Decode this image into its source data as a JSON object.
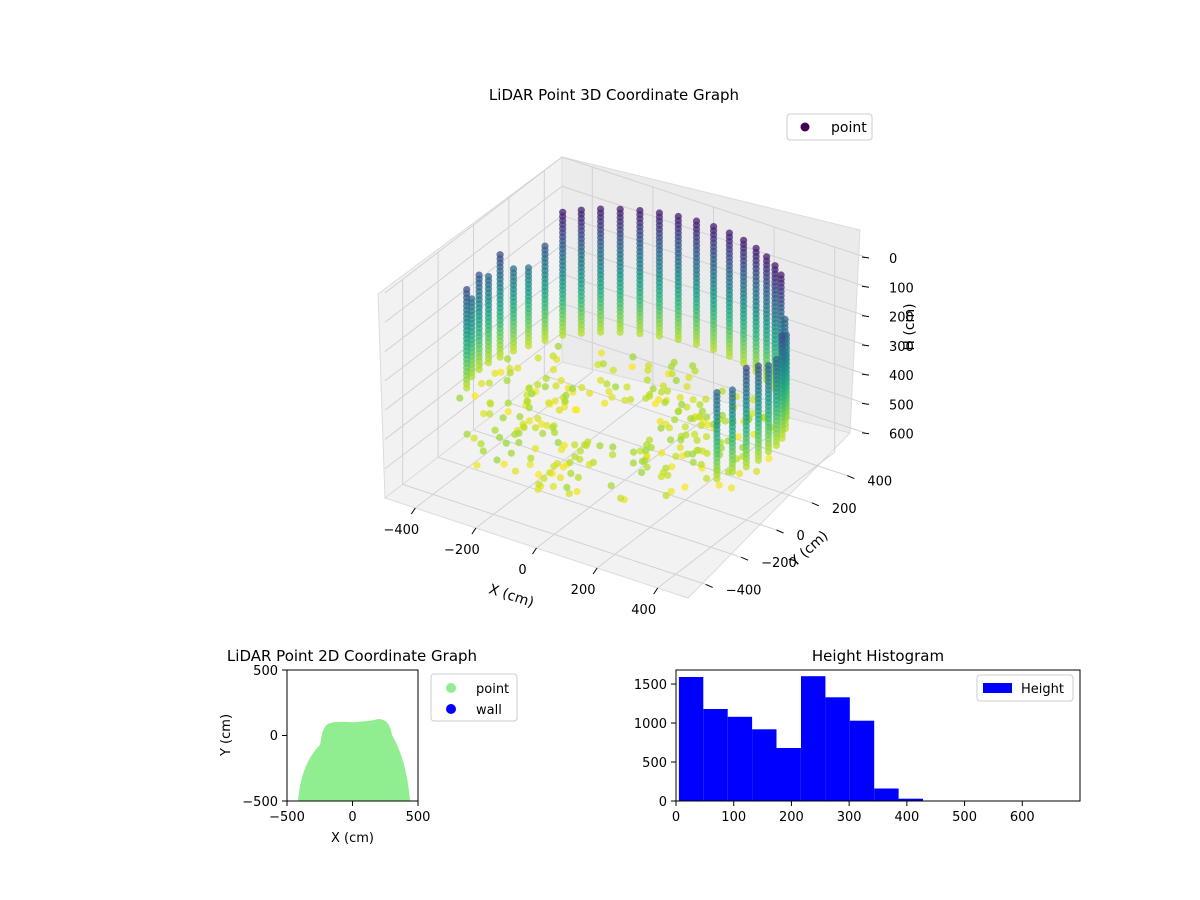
{
  "chart_data": [
    {
      "type": "scatter",
      "projection": "3d",
      "title": "LiDAR Point 3D Coordinate Graph",
      "xlabel": "X (cm)",
      "ylabel": "Y (cm)",
      "zlabel": "H (cm)",
      "xticks": [
        "−400",
        "−200",
        "0",
        "200",
        "400"
      ],
      "yticks": [
        "400",
        "200",
        "0",
        "−200",
        "−400"
      ],
      "zticks": [
        "0",
        "100",
        "200",
        "300",
        "400",
        "500",
        "600"
      ],
      "xlim": [
        -500,
        500
      ],
      "ylim": [
        -500,
        500
      ],
      "zlim": [
        0,
        700
      ],
      "z_axis_inverted": true,
      "colormap": "viridis",
      "legend": {
        "label": "point",
        "position": "top-right",
        "marker_color": "#440154"
      },
      "grid": true,
      "series": [
        {
          "name": "point",
          "description_of_shape": "curved wall of vertical point columns around the sensor plus sparse floor ring",
          "angle_range_deg": [
            -25,
            205
          ],
          "radius_cm": 460
        }
      ]
    },
    {
      "type": "scatter",
      "title": "LiDAR Point 2D Coordinate Graph",
      "xlabel": "X (cm)",
      "ylabel": "Y (cm)",
      "xticks": [
        "−500",
        "0",
        "500"
      ],
      "yticks": [
        "500",
        "0",
        "−500"
      ],
      "xlim": [
        -500,
        500
      ],
      "ylim": [
        -500,
        500
      ],
      "legend": {
        "position": "right",
        "entries": [
          {
            "label": "point",
            "color": "#90ee90"
          },
          {
            "label": "wall",
            "color": "#0000ff"
          }
        ]
      },
      "series": [
        {
          "name": "point",
          "color": "#90ee90"
        },
        {
          "name": "wall",
          "color": "#0000ff"
        }
      ]
    },
    {
      "type": "bar",
      "subtype": "histogram",
      "title": "Height Histogram",
      "xlim": [
        0,
        700
      ],
      "ylim": [
        0,
        1680
      ],
      "xticks": [
        "0",
        "100",
        "200",
        "300",
        "400",
        "500",
        "600"
      ],
      "yticks": [
        "0",
        "500",
        "1000",
        "1500"
      ],
      "bin_edges": [
        5,
        47.3,
        89.6,
        131.9,
        174.2,
        216.5,
        258.8,
        301.1,
        343.4,
        385.7,
        428,
        470.3,
        512.6,
        554.9,
        597.2,
        639.5,
        681.8
      ],
      "counts": [
        1590,
        1180,
        1080,
        920,
        680,
        1600,
        1330,
        1030,
        160,
        30,
        3,
        2,
        2,
        1,
        1,
        1
      ],
      "series": [
        {
          "name": "Height",
          "color": "#0000ff"
        }
      ],
      "legend": {
        "label": "Height",
        "position": "top-right"
      }
    }
  ]
}
